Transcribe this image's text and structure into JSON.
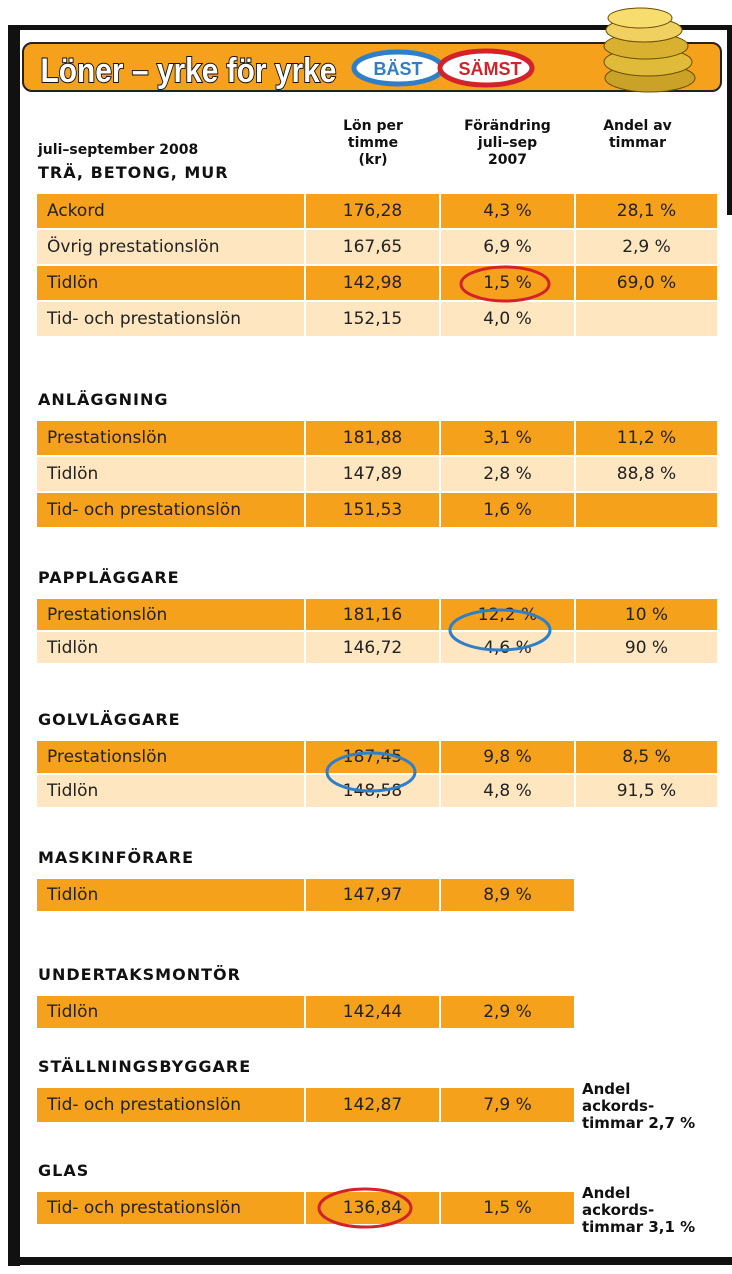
{
  "header": {
    "title": "Löner – yrke för yrke",
    "best": "BÄST",
    "worst": "SÄMST"
  },
  "columns": {
    "period": "juli–september 2008",
    "wage": "Lön per\ntimme\n(kr)",
    "change": "Förändring\njuli–sep\n2007",
    "share": "Andel av\ntimmar"
  },
  "sections": [
    {
      "name": "TRÄ, BETONG, MUR",
      "rows": [
        [
          "Ackord",
          "176,28",
          "4,3 %",
          "28,1 %"
        ],
        [
          "Övrig prestationslön",
          "167,65",
          "6,9 %",
          "2,9 %"
        ],
        [
          "Tidlön",
          "142,98",
          "1,5 %",
          "69,0 %"
        ],
        [
          "Tid- och prestationslön",
          "152,15",
          "4,0 %"
        ]
      ]
    },
    {
      "name": "ANLÄGGNING",
      "rows": [
        [
          "Prestationslön",
          "181,88",
          "3,1 %",
          "11,2 %"
        ],
        [
          "Tidlön",
          "147,89",
          "2,8 %",
          "88,8 %"
        ],
        [
          "Tid- och prestationslön",
          "151,53",
          "1,6 %"
        ]
      ]
    },
    {
      "name": "PAPPLÄGGARE",
      "rows": [
        [
          "Prestationslön",
          "181,16",
          "12,2 %",
          "10 %"
        ],
        [
          "Tidlön",
          "146,72",
          "4,6 %",
          "90 %"
        ]
      ]
    },
    {
      "name": "GOLVLÄGGARE",
      "rows": [
        [
          "Prestationslön",
          "187,45",
          "9,8 %",
          "8,5 %"
        ],
        [
          "Tidlön",
          "148,58",
          "4,8 %",
          "91,5 %"
        ]
      ]
    },
    {
      "name": "MASKINFÖRARE",
      "rows": [
        [
          "Tidlön",
          "147,97",
          "8,9 %"
        ]
      ]
    },
    {
      "name": "UNDERTAKSMONTÖR",
      "rows": [
        [
          "Tidlön",
          "142,44",
          "2,9 %"
        ]
      ]
    },
    {
      "name": "STÄLLNINGSBYGGARE",
      "rows": [
        [
          "Tid- och prestationslön",
          "142,87",
          "7,9 %"
        ]
      ],
      "note": "Andel\nackords-\ntimmar 2,7 %"
    },
    {
      "name": "GLAS",
      "rows": [
        [
          "Tid- och prestationslön",
          "136,84",
          "1,5 %"
        ]
      ],
      "note": "Andel\nackords-\ntimmar 3,1 %"
    }
  ]
}
